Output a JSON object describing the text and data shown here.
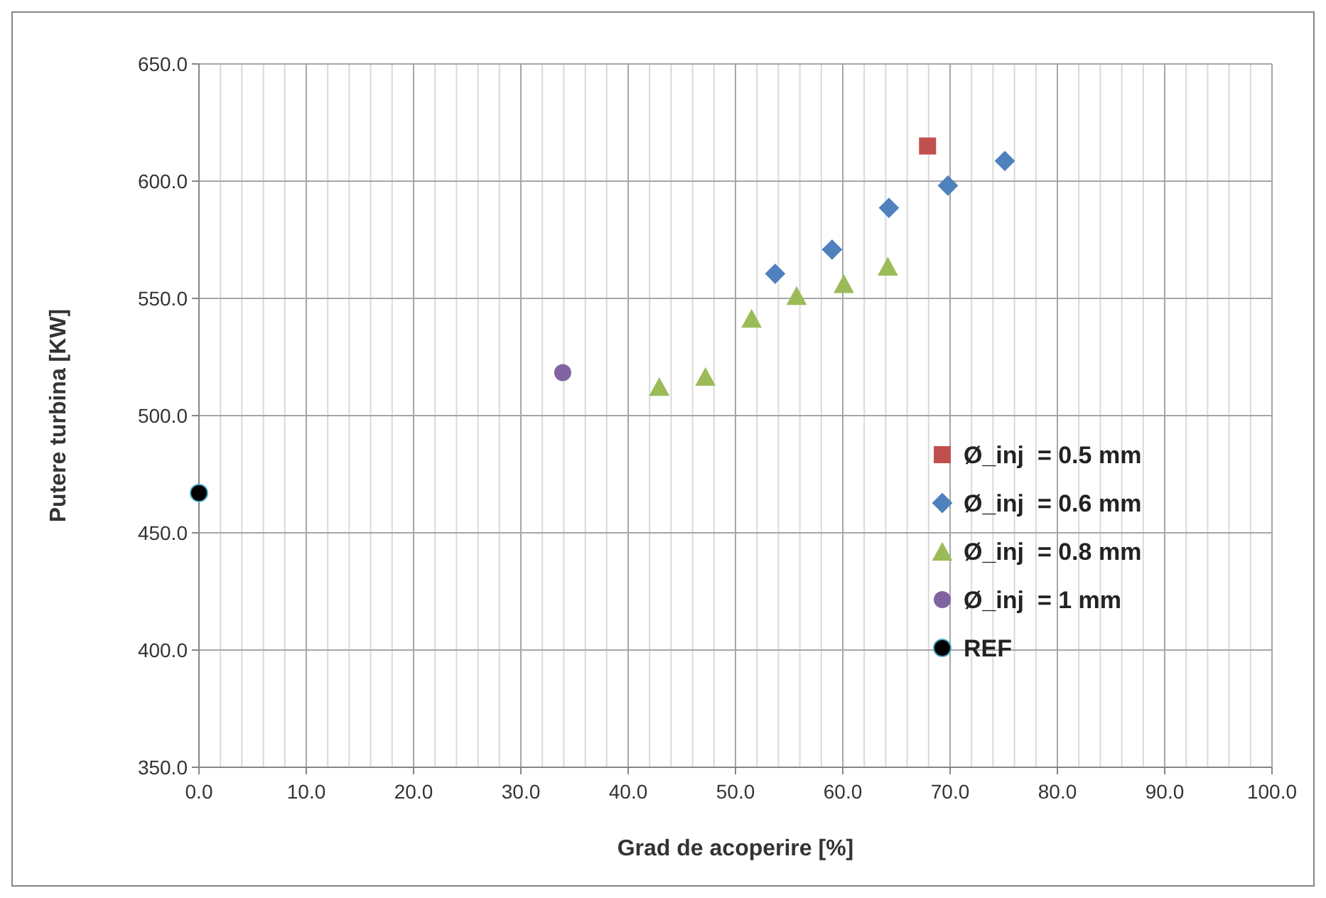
{
  "chart_data": {
    "type": "scatter",
    "xlabel": "Grad de acoperire [%]",
    "ylabel": "Putere turbina [KW]",
    "xlim": [
      0,
      100
    ],
    "ylim": [
      350,
      650
    ],
    "xticks": [
      {
        "value": 0,
        "label": "0.0"
      },
      {
        "value": 2,
        "label": null
      },
      {
        "value": 4,
        "label": null
      },
      {
        "value": 6,
        "label": null
      },
      {
        "value": 8,
        "label": null
      },
      {
        "value": 10,
        "label": "10.0"
      },
      {
        "value": 12,
        "label": null
      },
      {
        "value": 14,
        "label": null
      },
      {
        "value": 16,
        "label": null
      },
      {
        "value": 18,
        "label": null
      },
      {
        "value": 20,
        "label": "20.0"
      },
      {
        "value": 22,
        "label": null
      },
      {
        "value": 24,
        "label": null
      },
      {
        "value": 26,
        "label": null
      },
      {
        "value": 28,
        "label": null
      },
      {
        "value": 30,
        "label": "30.0"
      },
      {
        "value": 32,
        "label": null
      },
      {
        "value": 34,
        "label": null
      },
      {
        "value": 36,
        "label": null
      },
      {
        "value": 38,
        "label": null
      },
      {
        "value": 40,
        "label": "40.0"
      },
      {
        "value": 42,
        "label": null
      },
      {
        "value": 44,
        "label": null
      },
      {
        "value": 46,
        "label": null
      },
      {
        "value": 48,
        "label": null
      },
      {
        "value": 50,
        "label": "50.0"
      },
      {
        "value": 52,
        "label": null
      },
      {
        "value": 54,
        "label": null
      },
      {
        "value": 56,
        "label": null
      },
      {
        "value": 58,
        "label": null
      },
      {
        "value": 60,
        "label": "60.0"
      },
      {
        "value": 62,
        "label": null
      },
      {
        "value": 64,
        "label": null
      },
      {
        "value": 66,
        "label": null
      },
      {
        "value": 68,
        "label": null
      },
      {
        "value": 70,
        "label": "70.0"
      },
      {
        "value": 72,
        "label": null
      },
      {
        "value": 74,
        "label": null
      },
      {
        "value": 76,
        "label": null
      },
      {
        "value": 78,
        "label": null
      },
      {
        "value": 80,
        "label": "80.0"
      },
      {
        "value": 82,
        "label": null
      },
      {
        "value": 84,
        "label": null
      },
      {
        "value": 86,
        "label": null
      },
      {
        "value": 88,
        "label": null
      },
      {
        "value": 90,
        "label": "90.0"
      },
      {
        "value": 92,
        "label": null
      },
      {
        "value": 94,
        "label": null
      },
      {
        "value": 96,
        "label": null
      },
      {
        "value": 98,
        "label": null
      },
      {
        "value": 100,
        "label": "100.0"
      }
    ],
    "yticks": [
      {
        "value": 350,
        "label": "350.0"
      },
      {
        "value": 400,
        "label": "400.0"
      },
      {
        "value": 450,
        "label": "450.0"
      },
      {
        "value": 500,
        "label": "500.0"
      },
      {
        "value": 550,
        "label": "550.0"
      },
      {
        "value": 600,
        "label": "600.0"
      },
      {
        "value": 650,
        "label": "650.0"
      }
    ],
    "grid": true,
    "legend": "right",
    "series": [
      {
        "name": "Ø_inj  = 0.5 mm",
        "color": "#c0504d",
        "marker": "square",
        "x": [
          67.9
        ],
        "values": [
          615.0
        ]
      },
      {
        "name": "Ø_inj  = 0.6 mm",
        "color": "#4f81bd",
        "marker": "diamond",
        "x": [
          53.7,
          59.0,
          64.3,
          69.8,
          75.1
        ],
        "values": [
          560.5,
          570.8,
          588.6,
          598.1,
          608.6
        ]
      },
      {
        "name": "Ø_inj  = 0.8 mm",
        "color": "#9bbb59",
        "marker": "triangle",
        "x": [
          42.9,
          47.2,
          51.5,
          55.7,
          60.1,
          64.2
        ],
        "values": [
          512.4,
          516.7,
          541.5,
          551.2,
          556.3,
          563.7
        ]
      },
      {
        "name": "Ø_inj  = 1 mm",
        "color": "#8064a2",
        "marker": "circle",
        "x": [
          33.9
        ],
        "values": [
          518.3
        ]
      },
      {
        "name": "REF",
        "color": "#000000",
        "marker": "circle",
        "x": [
          0
        ],
        "values": [
          467
        ]
      }
    ]
  }
}
